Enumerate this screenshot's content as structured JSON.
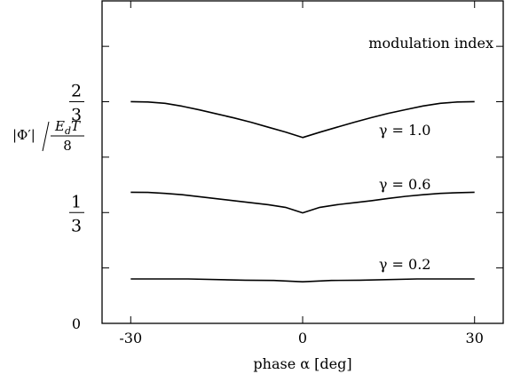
{
  "chart_data": {
    "type": "line",
    "title": "",
    "xlabel": "phase α [deg]",
    "ylabel": {
      "prefix": "|Φ′|",
      "frac_num": "E",
      "frac_num_sub": "d",
      "frac_num_tail": "T",
      "frac_den": "8"
    },
    "xlim": [
      -35,
      35
    ],
    "ylim": [
      0,
      0.97
    ],
    "grid": false,
    "x_ticks": [
      {
        "value": -30,
        "label": "-30"
      },
      {
        "value": 0,
        "label": "0"
      },
      {
        "value": 30,
        "label": "30"
      }
    ],
    "y_minor_ticks": [
      0.1667,
      0.5,
      0.8333
    ],
    "y_ticks": [
      {
        "value": 0,
        "label": "0"
      },
      {
        "value": 0.3333,
        "num": "1",
        "den": "3"
      },
      {
        "value": 0.6667,
        "num": "2",
        "den": "3"
      }
    ],
    "legend_title": "modulation index",
    "series": [
      {
        "name": "γ = 1.0",
        "x": [
          -30,
          -27,
          -24,
          -21,
          -18,
          -15,
          -12,
          -9,
          -6,
          -3,
          0,
          3,
          6,
          9,
          12,
          15,
          18,
          21,
          24,
          27,
          30
        ],
        "y": [
          0.667,
          0.666,
          0.662,
          0.653,
          0.642,
          0.63,
          0.618,
          0.605,
          0.59,
          0.5755,
          0.559,
          0.575,
          0.59,
          0.605,
          0.619,
          0.632,
          0.643,
          0.654,
          0.662,
          0.666,
          0.667
        ]
      },
      {
        "name": "γ = 0.6",
        "x": [
          -30,
          -27,
          -24,
          -21,
          -18,
          -15,
          -12,
          -9,
          -6,
          -3,
          0,
          3,
          6,
          9,
          12,
          15,
          18,
          21,
          24,
          27,
          30
        ],
        "y": [
          0.3945,
          0.394,
          0.391,
          0.387,
          0.381,
          0.375,
          0.369,
          0.363,
          0.357,
          0.349,
          0.3325,
          0.349,
          0.357,
          0.363,
          0.369,
          0.376,
          0.382,
          0.387,
          0.391,
          0.393,
          0.3945
        ]
      },
      {
        "name": "γ = 0.2",
        "x": [
          -30,
          -20,
          -10,
          -5,
          0,
          5,
          10,
          20,
          30
        ],
        "y": [
          0.1336,
          0.1336,
          0.13,
          0.129,
          0.125,
          0.129,
          0.13,
          0.1336,
          0.1336
        ]
      }
    ],
    "annotations": [
      {
        "text": "γ = 1.0",
        "x": 13.3,
        "y": 0.567
      },
      {
        "text": "γ = 0.6",
        "x": 13.3,
        "y": 0.404
      },
      {
        "text": "γ = 0.2",
        "x": 13.3,
        "y": 0.163
      }
    ]
  }
}
